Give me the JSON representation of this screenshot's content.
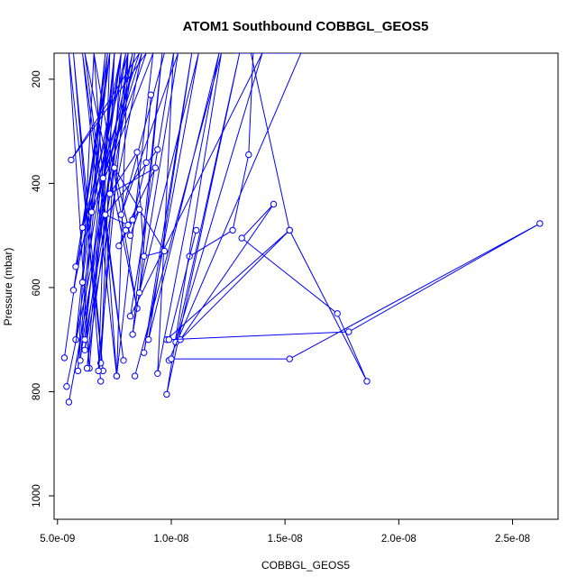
{
  "chart_data": {
    "type": "line",
    "title": "ATOM1 Southbound COBBGL_GEOS5",
    "xlabel": "COBBGL_GEOS5",
    "ylabel": "Pressure (mbar)",
    "xlim": [
      4.85e-09,
      2.7e-08
    ],
    "ylim": [
      1045,
      150
    ],
    "y_reversed": true,
    "x_ticks": [
      5e-09,
      1e-08,
      1.5e-08,
      2e-08,
      2.5e-08
    ],
    "x_tick_labels": [
      "5.0e-09",
      "1.0e-08",
      "1.5e-08",
      "2.0e-08",
      "2.5e-08"
    ],
    "y_ticks": [
      200,
      400,
      600,
      800,
      1000
    ],
    "y_tick_labels": [
      "200",
      "400",
      "600",
      "800",
      "1000"
    ],
    "series_color": "#0000ff",
    "grid": false,
    "series": [
      {
        "x": [
          5.3e-09,
          7.2e-09,
          6e-09,
          7.8e-09,
          5.8e-09,
          7.1e-09,
          5.9e-09,
          6.6e-09,
          8.5e-09,
          6.2e-09,
          7.9e-09,
          6.1e-09,
          7.6e-09,
          6.6e-09,
          6.1e-09,
          7.3e-09,
          5.7e-09,
          7.8e-09,
          6.9e-09,
          7.5e-09,
          6.4e-09,
          5.5e-09,
          7e-09,
          5.7e-09,
          6.9e-09
        ],
        "y": [
          735,
          150,
          740,
          150,
          700,
          150,
          760,
          150,
          640,
          150,
          740,
          150,
          770,
          150,
          590,
          150,
          605,
          150,
          745,
          150,
          755,
          150,
          760,
          150,
          780
        ]
      },
      {
        "x": [
          5.4e-09,
          8.4e-09,
          6.2e-09,
          7.5e-09,
          6.3e-09,
          8.1e-09,
          6.8e-09,
          7.3e-09,
          5.8e-09,
          8.7e-09,
          6.2e-09,
          8e-09,
          6.5e-09,
          9.2e-09,
          7.6e-09,
          8.1e-09,
          6.1e-09,
          8.6e-09,
          5.6e-09,
          8.9e-09,
          7e-09,
          8.3e-09,
          5.5e-09
        ],
        "y": [
          790,
          150,
          700,
          150,
          755,
          150,
          760,
          150,
          560,
          150,
          720,
          150,
          455,
          150,
          770,
          150,
          485,
          150,
          355,
          150,
          390,
          150,
          820
        ]
      },
      {
        "x": [
          8.4e-09,
          1.22e-08,
          9.8e-09,
          1.3e-08,
          1.02e-08,
          1.4e-08,
          8.2e-09,
          1.01e-08,
          9.4e-09,
          1.21e-08,
          9e-09,
          1.09e-08,
          8.8e-09,
          1.12e-08,
          8.6e-09,
          9.6e-09,
          8.3e-09,
          1.03e-08,
          7.8e-09,
          9.7e-09
        ],
        "y": [
          770,
          150,
          805,
          150,
          705,
          150,
          655,
          150,
          765,
          150,
          700,
          150,
          725,
          150,
          610,
          150,
          690,
          150,
          460,
          150
        ]
      },
      {
        "x": [
          9.1e-09,
          8.9e-09,
          8.3e-09,
          8e-09,
          7.7e-09,
          8.6e-09,
          8.2e-09,
          7.5e-09,
          9.7e-09,
          8.8e-09,
          8.5e-09,
          7.3e-09,
          9.3e-09,
          8.1e-09,
          7.1e-09,
          9.4e-09
        ],
        "y": [
          230,
          360,
          470,
          490,
          520,
          450,
          500,
          370,
          530,
          540,
          340,
          420,
          370,
          480,
          460,
          335
        ]
      },
      {
        "x": [
          9.9e-09,
          1.57e-08,
          1.36e-08,
          1.34e-08,
          1.27e-08,
          1.08e-08
        ],
        "y": [
          740,
          150,
          150,
          345,
          490,
          540
        ]
      },
      {
        "x": [
          9.8e-09,
          1.52e-08,
          1.04e-08,
          1.45e-08,
          1.31e-08,
          1.73e-08,
          1.86e-08,
          1.52e-08,
          1.35e-08,
          1.28e-08
        ],
        "y": [
          700,
          490,
          700,
          440,
          505,
          650,
          780,
          490,
          150,
          150
        ]
      },
      {
        "x": [
          1e-08,
          1.52e-08,
          2.62e-08,
          1.78e-08,
          9.9e-09,
          1.11e-08
        ],
        "y": [
          737,
          737,
          477,
          685,
          700,
          490
        ]
      }
    ]
  }
}
